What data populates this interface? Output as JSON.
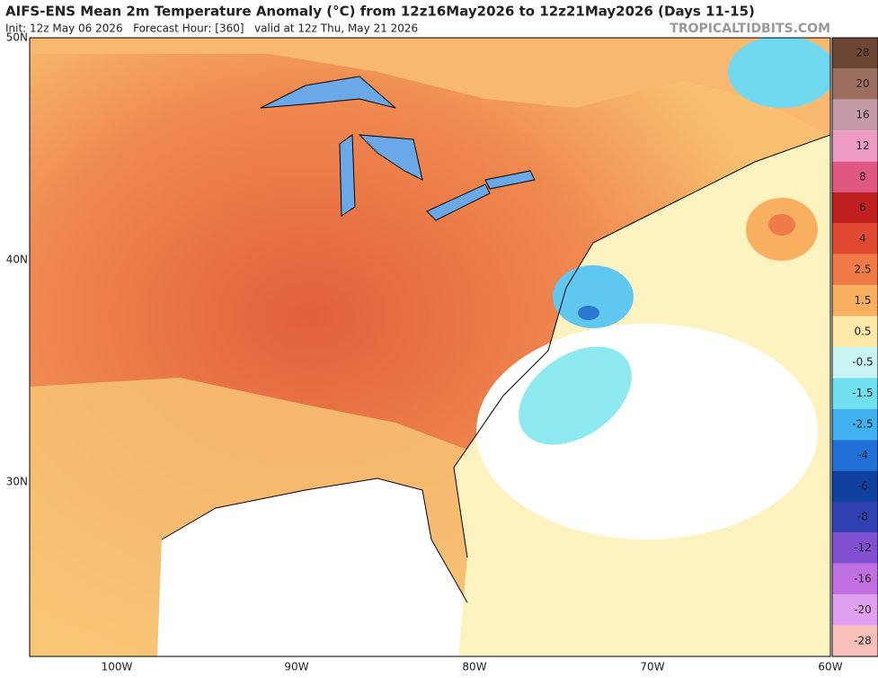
{
  "header": {
    "title": "AIFS-ENS Mean 2m Temperature Anomaly (°C) from 12z16May2026 to 12z21May2026 (Days 11-15)",
    "subtitle": "Init: 12z May 06 2026   Forecast Hour: [360]   valid at 12z Thu, May 21 2026",
    "site": "TROPICALTIDBITS.COM"
  },
  "map": {
    "lat_labels": [
      "50N",
      "40N",
      "30N"
    ],
    "lon_labels": [
      "100W",
      "90W",
      "80W",
      "70W",
      "60W"
    ]
  },
  "colorbar": {
    "levels": [
      28,
      20,
      16,
      12,
      8,
      6,
      4,
      2.5,
      1.5,
      0.5,
      -0.5,
      -1.5,
      -2.5,
      -4,
      -6,
      -8,
      -12,
      -16,
      -20,
      -28
    ],
    "colors": [
      "#6e4636",
      "#9c6e60",
      "#c79aa8",
      "#ef9cc4",
      "#e05880",
      "#c02020",
      "#e04830",
      "#f07a48",
      "#f8b060",
      "#fde8a8",
      "#c8f4f4",
      "#70e0f0",
      "#40b0f0",
      "#2070d8",
      "#1040a0",
      "#3040b0",
      "#8050d0",
      "#c070e0",
      "#e0a0f0",
      "#f8c0b8"
    ]
  }
}
